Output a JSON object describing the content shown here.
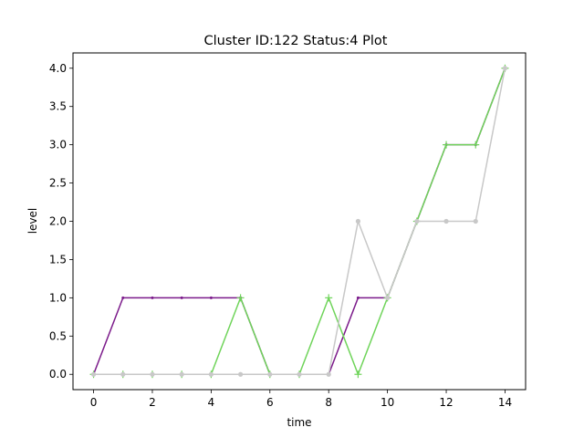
{
  "chart_data": {
    "type": "line",
    "title": "Cluster ID:122 Status:4 Plot",
    "xlabel": "time",
    "ylabel": "level",
    "xlim": [
      -0.7,
      14.7
    ],
    "ylim": [
      -0.2,
      4.2
    ],
    "xticks": [
      0,
      2,
      4,
      6,
      8,
      10,
      12,
      14
    ],
    "yticks": [
      0.0,
      0.5,
      1.0,
      1.5,
      2.0,
      2.5,
      3.0,
      3.5,
      4.0
    ],
    "ytick_labels": [
      "0.0",
      "0.5",
      "1.0",
      "1.5",
      "2.0",
      "2.5",
      "3.0",
      "3.5",
      "4.0"
    ],
    "grid": false,
    "x": [
      0,
      1,
      2,
      3,
      4,
      5,
      6,
      7,
      8,
      9,
      10,
      11,
      12,
      13,
      14
    ],
    "series": [
      {
        "color": "#7b1a8a",
        "marker": "point",
        "values": [
          0,
          1,
          1,
          1,
          1,
          1,
          0,
          0,
          0,
          1,
          1,
          2,
          3,
          3,
          4
        ]
      },
      {
        "color": "#6fd45a",
        "marker": "plus",
        "values": [
          0,
          0,
          0,
          0,
          0,
          1,
          0,
          0,
          1,
          0,
          1,
          2,
          3,
          3,
          4
        ]
      },
      {
        "color": "#c8c8c8",
        "marker": "dot",
        "values": [
          0,
          0,
          0,
          0,
          0,
          0,
          0,
          0,
          0,
          2,
          1,
          2,
          2,
          2,
          4
        ]
      }
    ]
  }
}
